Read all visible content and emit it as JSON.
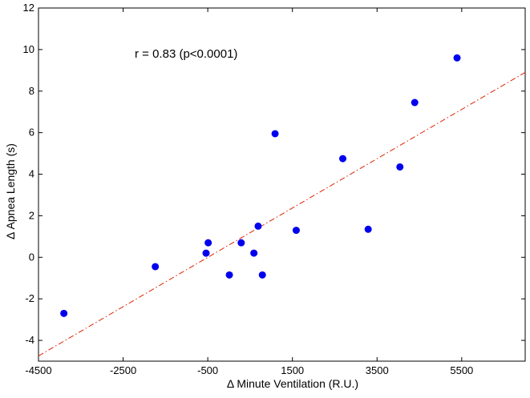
{
  "chart_data": {
    "type": "scatter",
    "title": "",
    "xlabel": "Δ Minute Ventilation (R.U.)",
    "ylabel": "Δ Apnea Length (s)",
    "xlim": [
      -4500,
      7000
    ],
    "ylim": [
      -5,
      12
    ],
    "x_ticks": [
      -4500,
      -2500,
      -500,
      1500,
      3500,
      5500
    ],
    "y_ticks": [
      -4,
      -2,
      0,
      2,
      4,
      6,
      8,
      10,
      12
    ],
    "grid": false,
    "annotation": "r = 0.83 (p<0.0001)",
    "point_color": "#0000ee",
    "fit_line_color": "#dd2200",
    "points": [
      {
        "x": -3900,
        "y": -2.7
      },
      {
        "x": -1740,
        "y": -0.45
      },
      {
        "x": -540,
        "y": 0.2
      },
      {
        "x": -490,
        "y": 0.7
      },
      {
        "x": 10,
        "y": -0.85
      },
      {
        "x": 290,
        "y": 0.7
      },
      {
        "x": 590,
        "y": 0.2
      },
      {
        "x": 690,
        "y": 1.5
      },
      {
        "x": 790,
        "y": -0.85
      },
      {
        "x": 1090,
        "y": 5.95
      },
      {
        "x": 1590,
        "y": 1.3
      },
      {
        "x": 2690,
        "y": 4.75
      },
      {
        "x": 3290,
        "y": 1.35
      },
      {
        "x": 4040,
        "y": 4.35
      },
      {
        "x": 4390,
        "y": 7.45
      },
      {
        "x": 5390,
        "y": 9.6
      }
    ],
    "fit_line": {
      "x": [
        -4500,
        7000
      ],
      "y": [
        -4.75,
        8.9
      ]
    }
  }
}
